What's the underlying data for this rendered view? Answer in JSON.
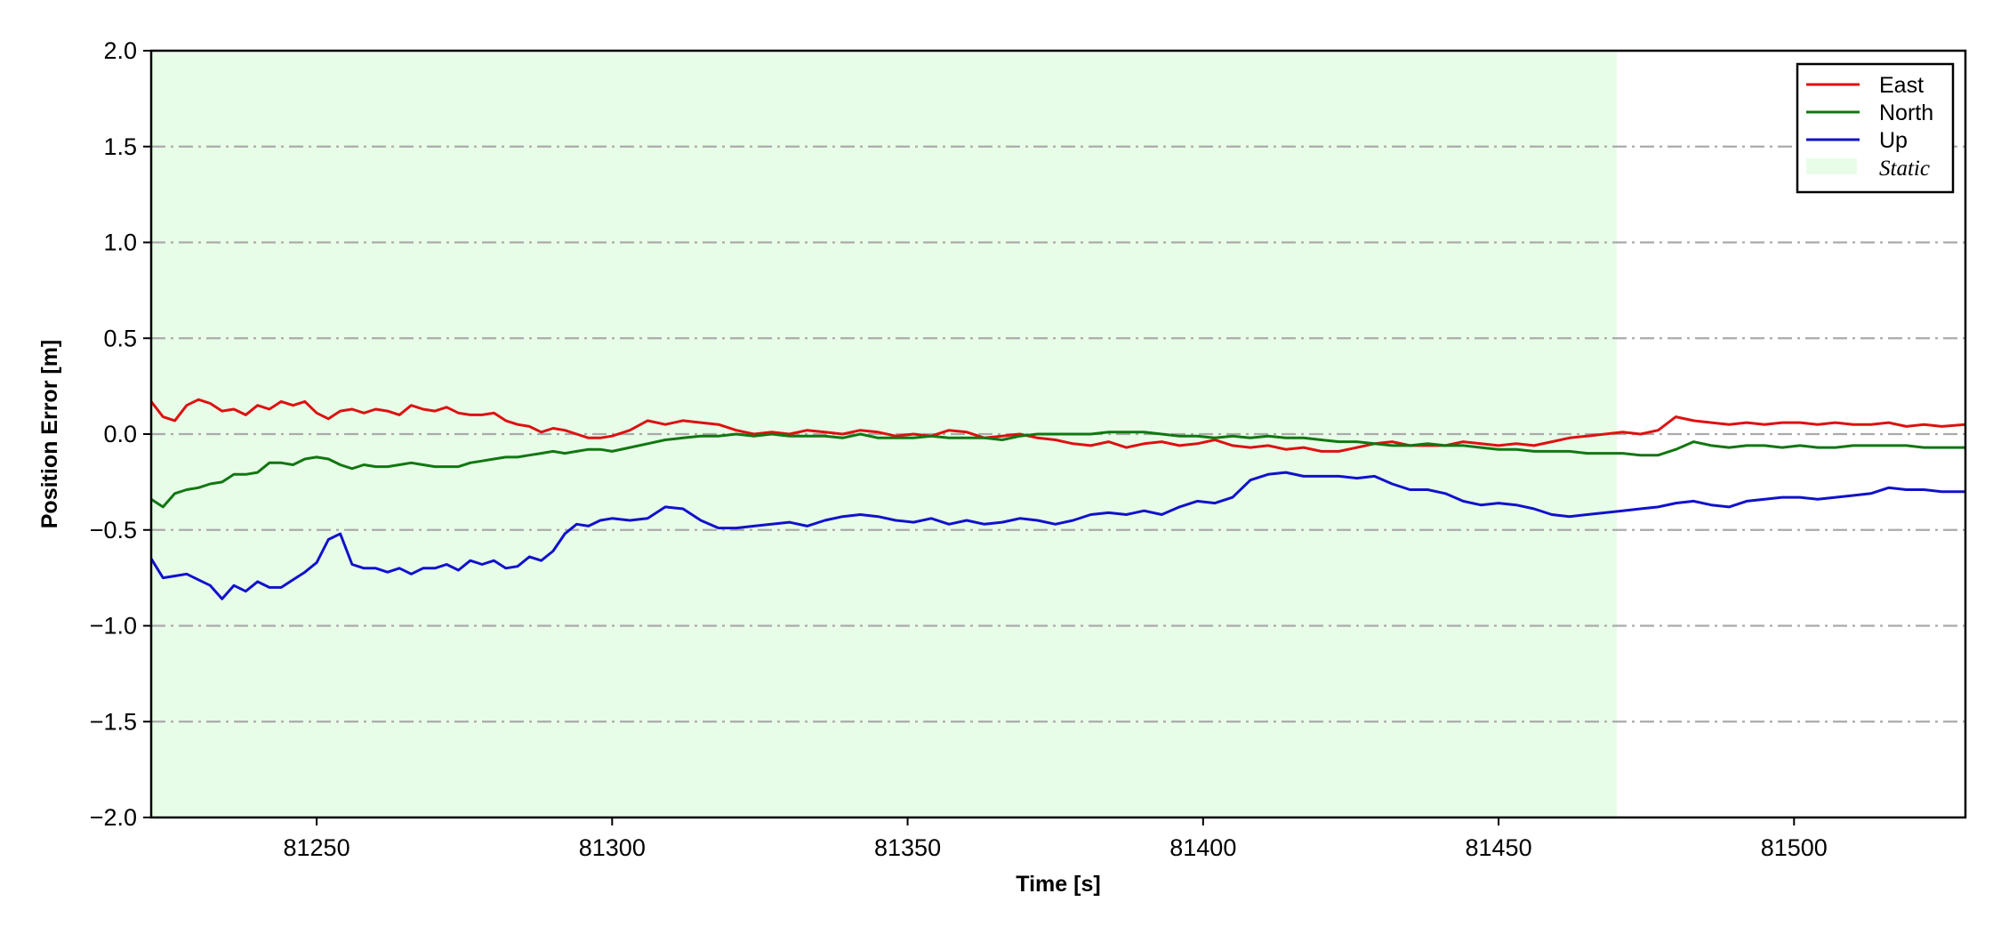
{
  "chart_data": {
    "type": "line",
    "xlabel": "Time [s]",
    "ylabel": "Position Error [m]",
    "xlim": [
      81222,
      81529
    ],
    "ylim": [
      -2.0,
      2.0
    ],
    "x_ticks": [
      81250,
      81300,
      81350,
      81400,
      81450,
      81500
    ],
    "x_tick_labels": [
      "81250",
      "81300",
      "81350",
      "81400",
      "81450",
      "81500"
    ],
    "y_ticks": [
      2.0,
      1.5,
      1.0,
      0.5,
      0.0,
      -0.5,
      -1.0,
      -1.5,
      -2.0
    ],
    "y_tick_labels": [
      "2.0",
      "1.5",
      "1.0",
      "0.5",
      "0.0",
      "−0.5",
      "−1.0",
      "−1.5",
      "−2.0"
    ],
    "grid": "horizontal dash-dot",
    "grid_color": "#aaaaaa",
    "legend_position": "top-right",
    "shaded_region": {
      "name": "Static",
      "x_start": 81222,
      "x_end": 81470,
      "color": "#e8fde8"
    },
    "series": [
      {
        "name": "East",
        "color": "#dd1111",
        "x": [
          81222,
          81224,
          81226,
          81228,
          81230,
          81232,
          81234,
          81236,
          81238,
          81240,
          81242,
          81244,
          81246,
          81248,
          81250,
          81252,
          81254,
          81256,
          81258,
          81260,
          81262,
          81264,
          81266,
          81268,
          81270,
          81272,
          81274,
          81276,
          81278,
          81280,
          81282,
          81284,
          81286,
          81288,
          81290,
          81292,
          81294,
          81296,
          81298,
          81300,
          81303,
          81306,
          81309,
          81312,
          81315,
          81318,
          81321,
          81324,
          81327,
          81330,
          81333,
          81336,
          81339,
          81342,
          81345,
          81348,
          81351,
          81354,
          81357,
          81360,
          81363,
          81366,
          81369,
          81372,
          81375,
          81378,
          81381,
          81384,
          81387,
          81390,
          81393,
          81396,
          81399,
          81402,
          81405,
          81408,
          81411,
          81414,
          81417,
          81420,
          81423,
          81426,
          81429,
          81432,
          81435,
          81438,
          81441,
          81444,
          81447,
          81450,
          81453,
          81456,
          81459,
          81462,
          81465,
          81468,
          81471,
          81474,
          81477,
          81480,
          81483,
          81486,
          81489,
          81492,
          81495,
          81498,
          81501,
          81504,
          81507,
          81510,
          81513,
          81516,
          81519,
          81522,
          81525,
          81529
        ],
        "values": [
          0.17,
          0.09,
          0.07,
          0.15,
          0.18,
          0.16,
          0.12,
          0.13,
          0.1,
          0.15,
          0.13,
          0.17,
          0.15,
          0.17,
          0.11,
          0.08,
          0.12,
          0.13,
          0.11,
          0.13,
          0.12,
          0.1,
          0.15,
          0.13,
          0.12,
          0.14,
          0.11,
          0.1,
          0.1,
          0.11,
          0.07,
          0.05,
          0.04,
          0.01,
          0.03,
          0.02,
          0.0,
          -0.02,
          -0.02,
          -0.01,
          0.02,
          0.07,
          0.05,
          0.07,
          0.06,
          0.05,
          0.02,
          0.0,
          0.01,
          0.0,
          0.02,
          0.01,
          0.0,
          0.02,
          0.01,
          -0.01,
          0.0,
          -0.01,
          0.02,
          0.01,
          -0.02,
          -0.01,
          0.0,
          -0.02,
          -0.03,
          -0.05,
          -0.06,
          -0.04,
          -0.07,
          -0.05,
          -0.04,
          -0.06,
          -0.05,
          -0.03,
          -0.06,
          -0.07,
          -0.06,
          -0.08,
          -0.07,
          -0.09,
          -0.09,
          -0.07,
          -0.05,
          -0.04,
          -0.06,
          -0.06,
          -0.06,
          -0.04,
          -0.05,
          -0.06,
          -0.05,
          -0.06,
          -0.04,
          -0.02,
          -0.01,
          0.0,
          0.01,
          0.0,
          0.02,
          0.09,
          0.07,
          0.06,
          0.05,
          0.06,
          0.05,
          0.06,
          0.06,
          0.05,
          0.06,
          0.05,
          0.05,
          0.06,
          0.04,
          0.05,
          0.04,
          0.05
        ]
      },
      {
        "name": "North",
        "color": "#117711",
        "x": [
          81222,
          81224,
          81226,
          81228,
          81230,
          81232,
          81234,
          81236,
          81238,
          81240,
          81242,
          81244,
          81246,
          81248,
          81250,
          81252,
          81254,
          81256,
          81258,
          81260,
          81262,
          81264,
          81266,
          81268,
          81270,
          81272,
          81274,
          81276,
          81278,
          81280,
          81282,
          81284,
          81286,
          81288,
          81290,
          81292,
          81294,
          81296,
          81298,
          81300,
          81303,
          81306,
          81309,
          81312,
          81315,
          81318,
          81321,
          81324,
          81327,
          81330,
          81333,
          81336,
          81339,
          81342,
          81345,
          81348,
          81351,
          81354,
          81357,
          81360,
          81363,
          81366,
          81369,
          81372,
          81375,
          81378,
          81381,
          81384,
          81387,
          81390,
          81393,
          81396,
          81399,
          81402,
          81405,
          81408,
          81411,
          81414,
          81417,
          81420,
          81423,
          81426,
          81429,
          81432,
          81435,
          81438,
          81441,
          81444,
          81447,
          81450,
          81453,
          81456,
          81459,
          81462,
          81465,
          81468,
          81471,
          81474,
          81477,
          81480,
          81483,
          81486,
          81489,
          81492,
          81495,
          81498,
          81501,
          81504,
          81507,
          81510,
          81513,
          81516,
          81519,
          81522,
          81525,
          81529
        ],
        "values": [
          -0.34,
          -0.38,
          -0.31,
          -0.29,
          -0.28,
          -0.26,
          -0.25,
          -0.21,
          -0.21,
          -0.2,
          -0.15,
          -0.15,
          -0.16,
          -0.13,
          -0.12,
          -0.13,
          -0.16,
          -0.18,
          -0.16,
          -0.17,
          -0.17,
          -0.16,
          -0.15,
          -0.16,
          -0.17,
          -0.17,
          -0.17,
          -0.15,
          -0.14,
          -0.13,
          -0.12,
          -0.12,
          -0.11,
          -0.1,
          -0.09,
          -0.1,
          -0.09,
          -0.08,
          -0.08,
          -0.09,
          -0.07,
          -0.05,
          -0.03,
          -0.02,
          -0.01,
          -0.01,
          0.0,
          -0.01,
          0.0,
          -0.01,
          -0.01,
          -0.01,
          -0.02,
          0.0,
          -0.02,
          -0.02,
          -0.02,
          -0.01,
          -0.02,
          -0.02,
          -0.02,
          -0.03,
          -0.01,
          0.0,
          0.0,
          0.0,
          0.0,
          0.01,
          0.01,
          0.01,
          0.0,
          -0.01,
          -0.01,
          -0.02,
          -0.01,
          -0.02,
          -0.01,
          -0.02,
          -0.02,
          -0.03,
          -0.04,
          -0.04,
          -0.05,
          -0.06,
          -0.06,
          -0.05,
          -0.06,
          -0.06,
          -0.07,
          -0.08,
          -0.08,
          -0.09,
          -0.09,
          -0.09,
          -0.1,
          -0.1,
          -0.1,
          -0.11,
          -0.11,
          -0.08,
          -0.04,
          -0.06,
          -0.07,
          -0.06,
          -0.06,
          -0.07,
          -0.06,
          -0.07,
          -0.07,
          -0.06,
          -0.06,
          -0.06,
          -0.06,
          -0.07,
          -0.07,
          -0.07
        ]
      },
      {
        "name": "Up",
        "color": "#1111cc",
        "x": [
          81222,
          81224,
          81226,
          81228,
          81230,
          81232,
          81234,
          81236,
          81238,
          81240,
          81242,
          81244,
          81246,
          81248,
          81250,
          81252,
          81254,
          81256,
          81258,
          81260,
          81262,
          81264,
          81266,
          81268,
          81270,
          81272,
          81274,
          81276,
          81278,
          81280,
          81282,
          81284,
          81286,
          81288,
          81290,
          81292,
          81294,
          81296,
          81298,
          81300,
          81303,
          81306,
          81309,
          81312,
          81315,
          81318,
          81321,
          81324,
          81327,
          81330,
          81333,
          81336,
          81339,
          81342,
          81345,
          81348,
          81351,
          81354,
          81357,
          81360,
          81363,
          81366,
          81369,
          81372,
          81375,
          81378,
          81381,
          81384,
          81387,
          81390,
          81393,
          81396,
          81399,
          81402,
          81405,
          81408,
          81411,
          81414,
          81417,
          81420,
          81423,
          81426,
          81429,
          81432,
          81435,
          81438,
          81441,
          81444,
          81447,
          81450,
          81453,
          81456,
          81459,
          81462,
          81465,
          81468,
          81471,
          81474,
          81477,
          81480,
          81483,
          81486,
          81489,
          81492,
          81495,
          81498,
          81501,
          81504,
          81507,
          81510,
          81513,
          81516,
          81519,
          81522,
          81525,
          81529
        ],
        "values": [
          -0.65,
          -0.75,
          -0.74,
          -0.73,
          -0.76,
          -0.79,
          -0.86,
          -0.79,
          -0.82,
          -0.77,
          -0.8,
          -0.8,
          -0.76,
          -0.72,
          -0.67,
          -0.55,
          -0.52,
          -0.68,
          -0.7,
          -0.7,
          -0.72,
          -0.7,
          -0.73,
          -0.7,
          -0.7,
          -0.68,
          -0.71,
          -0.66,
          -0.68,
          -0.66,
          -0.7,
          -0.69,
          -0.64,
          -0.66,
          -0.61,
          -0.52,
          -0.47,
          -0.48,
          -0.45,
          -0.44,
          -0.45,
          -0.44,
          -0.38,
          -0.39,
          -0.45,
          -0.49,
          -0.49,
          -0.48,
          -0.47,
          -0.46,
          -0.48,
          -0.45,
          -0.43,
          -0.42,
          -0.43,
          -0.45,
          -0.46,
          -0.44,
          -0.47,
          -0.45,
          -0.47,
          -0.46,
          -0.44,
          -0.45,
          -0.47,
          -0.45,
          -0.42,
          -0.41,
          -0.42,
          -0.4,
          -0.42,
          -0.38,
          -0.35,
          -0.36,
          -0.33,
          -0.24,
          -0.21,
          -0.2,
          -0.22,
          -0.22,
          -0.22,
          -0.23,
          -0.22,
          -0.26,
          -0.29,
          -0.29,
          -0.31,
          -0.35,
          -0.37,
          -0.36,
          -0.37,
          -0.39,
          -0.42,
          -0.43,
          -0.42,
          -0.41,
          -0.4,
          -0.39,
          -0.38,
          -0.36,
          -0.35,
          -0.37,
          -0.38,
          -0.35,
          -0.34,
          -0.33,
          -0.33,
          -0.34,
          -0.33,
          -0.32,
          -0.31,
          -0.28,
          -0.29,
          -0.29,
          -0.3,
          -0.3
        ]
      }
    ]
  }
}
